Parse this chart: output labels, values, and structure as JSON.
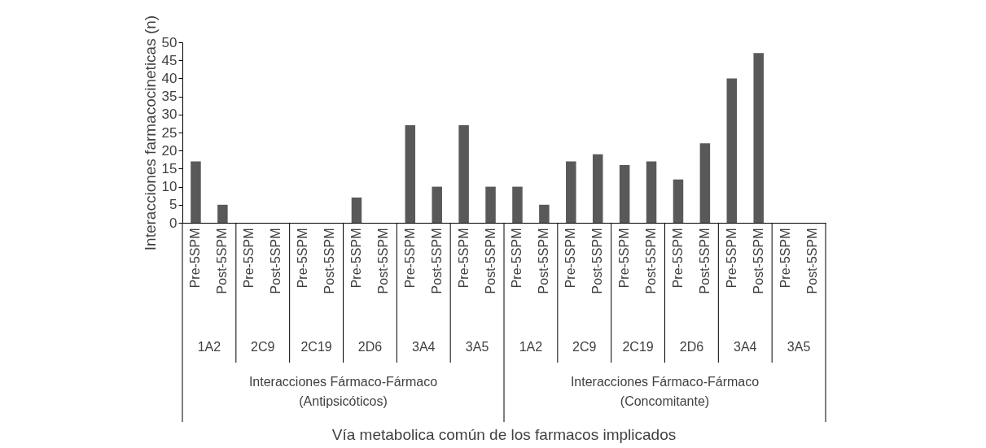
{
  "chart_data": {
    "type": "bar",
    "categories": [
      "Pre-5SPM",
      "Post-5SPM",
      "Pre-5SPM",
      "Post-5SPM",
      "Pre-5SPM",
      "Post-5SPM",
      "Pre-5SPM",
      "Post-5SPM",
      "Pre-5SPM",
      "Post-5SPM",
      "Pre-5SPM",
      "Post-5SPM",
      "Pre-5SPM",
      "Post-5SPM",
      "Pre-5SPM",
      "Post-5SPM",
      "Pre-5SPM",
      "Post-5SPM",
      "Pre-5SPM",
      "Post-5SPM",
      "Pre-5SPM",
      "Post-5SPM",
      "Pre-5SPM",
      "Post-5SPM"
    ],
    "values": [
      17,
      5,
      0,
      0,
      0,
      0,
      7,
      0,
      27,
      10,
      27,
      10,
      10,
      5,
      17,
      19,
      16,
      17,
      12,
      22,
      40,
      47,
      0,
      0
    ],
    "color": "#595959",
    "ylabel": "Interacciones farmacocineticas (n)",
    "annotations": [
      "1A2",
      "2C9",
      "2C19",
      "2D6",
      "3A4",
      "3A5",
      "1A2",
      "2C9",
      "2C19",
      "2D6",
      "3A4",
      "3A5",
      "Interacciones Fármaco-Fármaco\n(Antipsicóticos)",
      "Interacciones Fármaco-Fármaco\n(Concomitante)",
      "Vía metabolica común de los farmacos implicados"
    ],
    "ylim": [
      0,
      50
    ],
    "yticks": [
      0,
      5,
      10,
      15,
      20,
      25,
      30,
      35,
      40,
      45,
      50
    ],
    "grid": false
  }
}
